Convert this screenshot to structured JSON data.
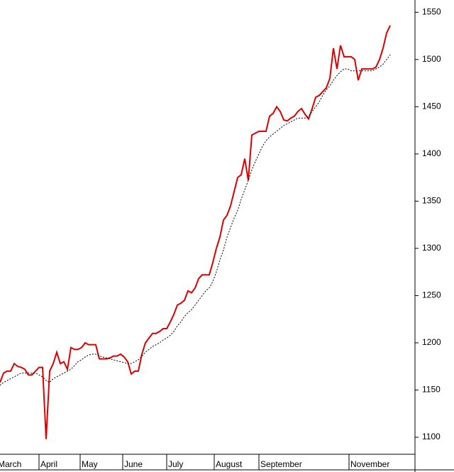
{
  "chart_data": {
    "type": "line",
    "xlim": [
      0,
      117
    ],
    "xticks": [
      {
        "value": -1,
        "label": "March"
      },
      {
        "value": 11,
        "label": "April"
      },
      {
        "value": 22.6,
        "label": "May"
      },
      {
        "value": 34.6,
        "label": "June"
      },
      {
        "value": 47,
        "label": "July"
      },
      {
        "value": 60.4,
        "label": "August"
      },
      {
        "value": 73,
        "label": "September"
      },
      {
        "value": 98.4,
        "label": "November"
      }
    ],
    "ylim": [
      1082,
      1563
    ],
    "yticks": [
      1100,
      1150,
      1200,
      1250,
      1300,
      1350,
      1400,
      1450,
      1500,
      1550
    ],
    "series": [
      {
        "color": "#dd0000",
        "style": "solid",
        "values": [
          1158,
          1168,
          1170,
          1170,
          1178,
          1175,
          1174,
          1172,
          1166,
          1166,
          1170,
          1174,
          1174,
          1098,
          1170,
          1178,
          1190,
          1178,
          1180,
          1172,
          1195,
          1193,
          1193,
          1195,
          1200,
          1198,
          1198,
          1198,
          1183,
          1183,
          1183,
          1184,
          1186,
          1186,
          1188,
          1185,
          1180,
          1167,
          1170,
          1170,
          1188,
          1200,
          1205,
          1210,
          1210,
          1212,
          1215,
          1215,
          1222,
          1230,
          1240,
          1242,
          1245,
          1255,
          1253,
          1258,
          1268,
          1272,
          1272,
          1272,
          1285,
          1300,
          1312,
          1330,
          1335,
          1345,
          1360,
          1375,
          1378,
          1395,
          1372,
          1420,
          1422,
          1424,
          1424,
          1424,
          1440,
          1443,
          1450,
          1445,
          1436,
          1435,
          1438,
          1440,
          1445,
          1448,
          1442,
          1437,
          1448,
          1460,
          1462,
          1466,
          1470,
          1480,
          1512,
          1490,
          1515,
          1503,
          1503,
          1503,
          1500,
          1478,
          1490,
          1490,
          1490,
          1490,
          1492,
          1500,
          1512,
          1528,
          1536
        ]
      },
      {
        "color": "#000000",
        "style": "dotted",
        "values": [
          1155,
          1158,
          1160,
          1162,
          1164,
          1166,
          1168,
          1168,
          1168,
          1168,
          1168,
          1166,
          1164,
          1160,
          1158,
          1162,
          1164,
          1166,
          1168,
          1170,
          1172,
          1176,
          1180,
          1182,
          1185,
          1187,
          1188,
          1188,
          1186,
          1185,
          1184,
          1183,
          1182,
          1181,
          1180,
          1179,
          1178,
          1178,
          1180,
          1182,
          1186,
          1190,
          1193,
          1196,
          1198,
          1200,
          1203,
          1205,
          1208,
          1212,
          1218,
          1222,
          1228,
          1232,
          1235,
          1240,
          1245,
          1250,
          1255,
          1258,
          1265,
          1275,
          1288,
          1298,
          1312,
          1322,
          1332,
          1340,
          1352,
          1362,
          1372,
          1383,
          1392,
          1400,
          1408,
          1414,
          1418,
          1421,
          1424,
          1427,
          1430,
          1432,
          1434,
          1436,
          1438,
          1438,
          1438,
          1440,
          1445,
          1450,
          1455,
          1462,
          1468,
          1472,
          1478,
          1483,
          1487,
          1490,
          1490,
          1488,
          1488,
          1488,
          1488,
          1488,
          1488,
          1488,
          1490,
          1492,
          1495,
          1500,
          1505
        ]
      }
    ]
  }
}
